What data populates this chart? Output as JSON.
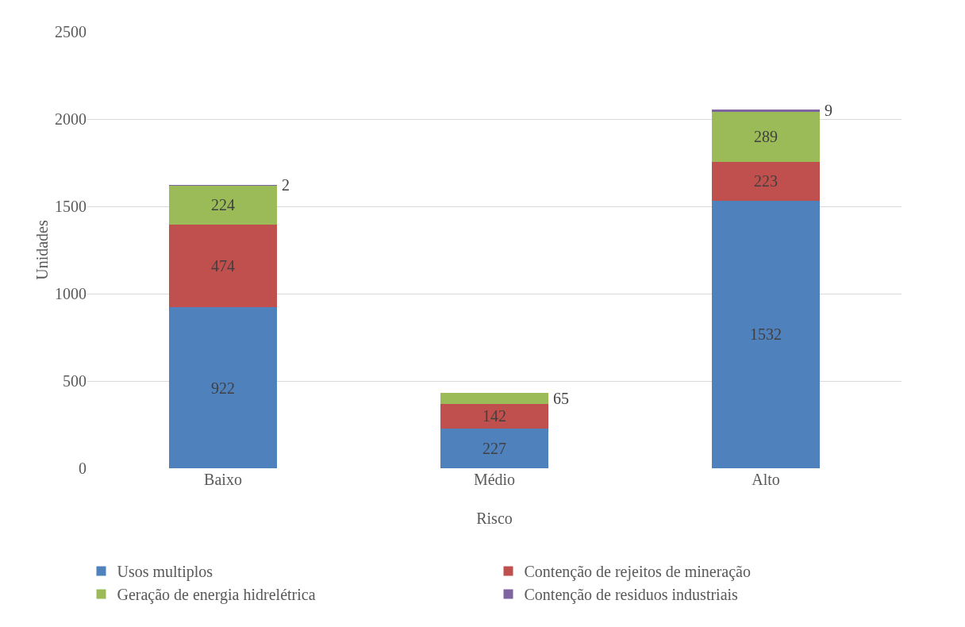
{
  "chart_data": {
    "type": "bar",
    "stacked": true,
    "xlabel": "Risco",
    "ylabel": "Unidades",
    "categories": [
      "Baixo",
      "Médio",
      "Alto"
    ],
    "series": [
      {
        "name": "Usos multiplos",
        "color": "#4f81bd",
        "values": [
          922,
          227,
          1532
        ]
      },
      {
        "name": "Contenção de rejeitos de mineração",
        "color": "#c0504d",
        "values": [
          474,
          142,
          223
        ]
      },
      {
        "name": "Geração de energia hidrelétrica",
        "color": "#9bbb59",
        "values": [
          224,
          65,
          289
        ]
      },
      {
        "name": "Contenção de residuos industriais",
        "color": "#8064a2",
        "values": [
          2,
          null,
          9
        ]
      }
    ],
    "ylim": [
      0,
      2500
    ],
    "yticks": [
      0,
      500,
      1000,
      1500,
      2000,
      2500
    ],
    "grid": "y",
    "legend": "bottom",
    "data_labels": true
  }
}
